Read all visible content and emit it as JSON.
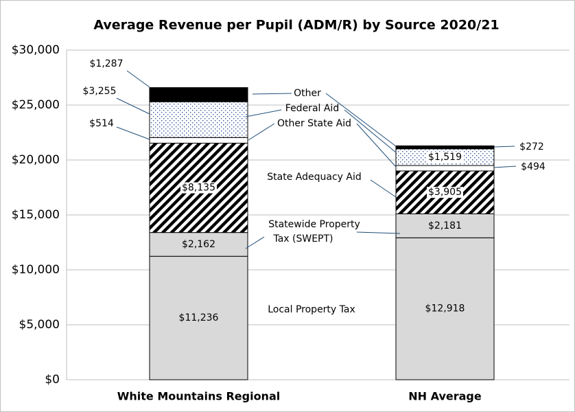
{
  "chart_data": {
    "type": "bar",
    "stacked": true,
    "title": "Average Revenue per Pupil (ADM/R) by Source 2020/21",
    "categories": [
      "White Mountains Regional",
      "NH Average"
    ],
    "ylim": [
      0,
      30000
    ],
    "yticks": [
      {
        "value": 0,
        "label": "$0"
      },
      {
        "value": 5000,
        "label": "$5,000"
      },
      {
        "value": 10000,
        "label": "$10,000"
      },
      {
        "value": 15000,
        "label": "$15,000"
      },
      {
        "value": 20000,
        "label": "$20,000"
      },
      {
        "value": 25000,
        "label": "$25,000"
      },
      {
        "value": 30000,
        "label": "$30,000"
      }
    ],
    "grid": true,
    "series": [
      {
        "name": "Local Property Tax",
        "color": "#d9d9d9",
        "pattern": "solid",
        "values": [
          11236,
          12918
        ],
        "value_labels": [
          "$11,236",
          "$12,918"
        ]
      },
      {
        "name": "Statewide Property Tax (SWEPT)",
        "color": "#d9d9d9",
        "pattern": "solid",
        "values": [
          2162,
          2181
        ],
        "value_labels": [
          "$2,162",
          "$2,181"
        ]
      },
      {
        "name": "State Adequacy Aid",
        "color": "#000000",
        "pattern": "hatch",
        "values": [
          8135,
          3905
        ],
        "value_labels": [
          "$8,135",
          "$3,905"
        ]
      },
      {
        "name": "Other State Aid",
        "color": "#ffffff",
        "pattern": "solid",
        "values": [
          514,
          494
        ],
        "value_labels": [
          "$514",
          "$494"
        ]
      },
      {
        "name": "Federal Aid",
        "color": "#2f5597",
        "pattern": "dots",
        "values": [
          3255,
          1519
        ],
        "value_labels": [
          "$3,255",
          "$1,519"
        ]
      },
      {
        "name": "Other",
        "color": "#000000",
        "pattern": "solid",
        "values": [
          1287,
          272
        ],
        "value_labels": [
          "$1,287",
          "$272"
        ]
      }
    ]
  }
}
